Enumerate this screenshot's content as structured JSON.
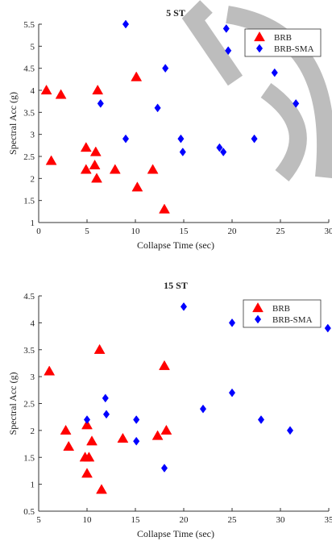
{
  "chart_data": [
    {
      "type": "scatter",
      "title": "5 ST",
      "xlabel": "Collapse Time (sec)",
      "ylabel": "Spectral Acc (g)",
      "xlim": [
        0,
        30
      ],
      "ylim": [
        1,
        5.5
      ],
      "xticks": [
        "0",
        "5",
        "10",
        "15",
        "20",
        "25",
        "30"
      ],
      "yticks": [
        "1",
        "1.5",
        "2",
        "2.5",
        "3",
        "3.5",
        "4",
        "4.5",
        "5",
        "5.5"
      ],
      "legend": "top-right",
      "series": [
        {
          "name": "BRB",
          "marker": "triangle",
          "color": "#ff0000",
          "points": [
            [
              0.8,
              4.0
            ],
            [
              2.3,
              3.9
            ],
            [
              1.3,
              2.4
            ],
            [
              4.9,
              2.7
            ],
            [
              4.9,
              2.2
            ],
            [
              5.8,
              2.3
            ],
            [
              5.9,
              2.6
            ],
            [
              6.0,
              2.0
            ],
            [
              6.1,
              4.0
            ],
            [
              7.9,
              2.2
            ],
            [
              10.1,
              4.3
            ],
            [
              10.2,
              1.8
            ],
            [
              11.8,
              2.2
            ],
            [
              13.0,
              1.3
            ]
          ]
        },
        {
          "name": "BRB-SMA",
          "marker": "diamond",
          "color": "#0000ff",
          "points": [
            [
              9.0,
              5.5
            ],
            [
              6.4,
              3.7
            ],
            [
              9.0,
              2.9
            ],
            [
              12.3,
              3.6
            ],
            [
              13.1,
              4.5
            ],
            [
              14.7,
              2.9
            ],
            [
              14.9,
              2.6
            ],
            [
              18.7,
              2.7
            ],
            [
              19.1,
              2.6
            ],
            [
              19.4,
              5.4
            ],
            [
              19.6,
              4.9
            ],
            [
              22.3,
              2.9
            ],
            [
              24.4,
              4.4
            ],
            [
              26.6,
              3.7
            ]
          ]
        }
      ]
    },
    {
      "type": "scatter",
      "title": "15 ST",
      "xlabel": "Collapse Time (sec)",
      "ylabel": "Spectral Acc (g)",
      "xlim": [
        5,
        35
      ],
      "ylim": [
        0.5,
        4.5
      ],
      "xticks": [
        "5",
        "10",
        "15",
        "20",
        "25",
        "30",
        "35"
      ],
      "yticks": [
        "0.5",
        "1",
        "1.5",
        "2",
        "2.5",
        "3",
        "3.5",
        "4",
        "4.5"
      ],
      "legend": "top-right",
      "series": [
        {
          "name": "BRB",
          "marker": "triangle",
          "color": "#ff0000",
          "points": [
            [
              6.1,
              3.1
            ],
            [
              7.8,
              2.0
            ],
            [
              8.1,
              1.7
            ],
            [
              9.8,
              1.5
            ],
            [
              10.0,
              2.1
            ],
            [
              10.0,
              1.2
            ],
            [
              10.2,
              1.5
            ],
            [
              10.5,
              1.8
            ],
            [
              11.3,
              3.5
            ],
            [
              11.5,
              0.9
            ],
            [
              13.7,
              1.85
            ],
            [
              17.3,
              1.9
            ],
            [
              18.0,
              3.2
            ],
            [
              18.2,
              2.0
            ]
          ]
        },
        {
          "name": "BRB-SMA",
          "marker": "diamond",
          "color": "#0000ff",
          "points": [
            [
              10.0,
              2.2
            ],
            [
              11.9,
              2.6
            ],
            [
              12.0,
              2.3
            ],
            [
              15.1,
              1.8
            ],
            [
              15.1,
              2.2
            ],
            [
              18.0,
              1.3
            ],
            [
              20.0,
              4.3
            ],
            [
              22.0,
              2.4
            ],
            [
              25.0,
              4.0
            ],
            [
              25.0,
              2.7
            ],
            [
              28.0,
              2.2
            ],
            [
              31.0,
              2.0
            ],
            [
              34.9,
              3.9
            ]
          ]
        }
      ]
    }
  ]
}
